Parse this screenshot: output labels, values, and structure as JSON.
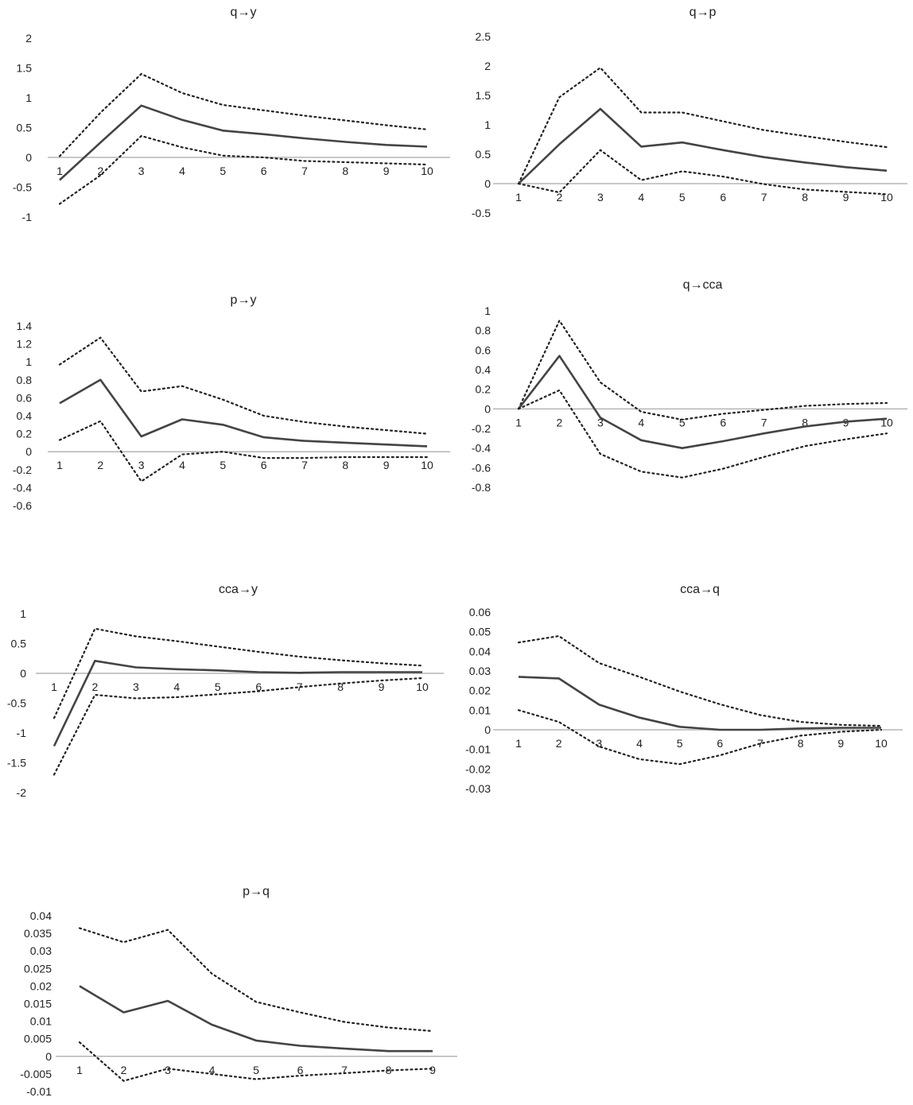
{
  "chart_data": [
    {
      "type": "line",
      "title": "q→y",
      "x": [
        1,
        2,
        3,
        4,
        5,
        6,
        7,
        8,
        9,
        10
      ],
      "y_ticks": [
        "2",
        "1.5",
        "1",
        "0.5",
        "0",
        "-0.5",
        "-1"
      ],
      "ylim": [
        -1,
        2
      ],
      "series": [
        {
          "name": "upper",
          "values": [
            0.02,
            0.75,
            1.4,
            1.08,
            0.88,
            0.79,
            0.7,
            0.62,
            0.54,
            0.47
          ]
        },
        {
          "name": "response",
          "values": [
            -0.38,
            0.25,
            0.87,
            0.63,
            0.45,
            0.39,
            0.32,
            0.26,
            0.21,
            0.18
          ]
        },
        {
          "name": "lower",
          "values": [
            -0.78,
            -0.3,
            0.36,
            0.17,
            0.03,
            0.0,
            -0.06,
            -0.08,
            -0.1,
            -0.12
          ]
        }
      ]
    },
    {
      "type": "line",
      "title": "q→p",
      "x": [
        1,
        2,
        3,
        4,
        5,
        6,
        7,
        8,
        9,
        10
      ],
      "y_ticks": [
        "2.5",
        "2",
        "1.5",
        "1",
        "0.5",
        "0",
        "-0.5"
      ],
      "ylim": [
        -0.5,
        2.5
      ],
      "series": [
        {
          "name": "upper",
          "values": [
            0.0,
            1.47,
            1.97,
            1.21,
            1.21,
            1.06,
            0.91,
            0.81,
            0.71,
            0.62
          ]
        },
        {
          "name": "response",
          "values": [
            0.0,
            0.67,
            1.27,
            0.63,
            0.7,
            0.57,
            0.45,
            0.36,
            0.28,
            0.22
          ]
        },
        {
          "name": "lower",
          "values": [
            0.0,
            -0.15,
            0.57,
            0.06,
            0.21,
            0.12,
            -0.01,
            -0.1,
            -0.14,
            -0.18
          ]
        }
      ]
    },
    {
      "type": "line",
      "title": "p→y",
      "x": [
        1,
        2,
        3,
        4,
        5,
        6,
        7,
        8,
        9,
        10
      ],
      "y_ticks": [
        "1.4",
        "1.2",
        "1",
        "0.8",
        "0.6",
        "0.4",
        "0.2",
        "0",
        "-0.2",
        "-0.4",
        "-0.6"
      ],
      "ylim": [
        -0.6,
        1.4
      ],
      "series": [
        {
          "name": "upper",
          "values": [
            0.97,
            1.27,
            0.67,
            0.73,
            0.58,
            0.4,
            0.33,
            0.28,
            0.24,
            0.2
          ]
        },
        {
          "name": "response",
          "values": [
            0.54,
            0.8,
            0.17,
            0.36,
            0.3,
            0.16,
            0.12,
            0.1,
            0.08,
            0.06
          ]
        },
        {
          "name": "lower",
          "values": [
            0.13,
            0.34,
            -0.33,
            -0.03,
            0.0,
            -0.07,
            -0.07,
            -0.06,
            -0.06,
            -0.06
          ]
        }
      ]
    },
    {
      "type": "line",
      "title": "q→cca",
      "x": [
        1,
        2,
        3,
        4,
        5,
        6,
        7,
        8,
        9,
        10
      ],
      "y_ticks": [
        "1",
        "0.8",
        "0.6",
        "0.4",
        "0.2",
        "0",
        "-0.2",
        "-0.4",
        "-0.6",
        "-0.8"
      ],
      "ylim": [
        -0.8,
        1.0
      ],
      "series": [
        {
          "name": "upper",
          "values": [
            0.0,
            0.9,
            0.27,
            -0.03,
            -0.11,
            -0.05,
            -0.01,
            0.03,
            0.05,
            0.06
          ]
        },
        {
          "name": "response",
          "values": [
            0.0,
            0.54,
            -0.09,
            -0.32,
            -0.4,
            -0.33,
            -0.25,
            -0.18,
            -0.13,
            -0.1
          ]
        },
        {
          "name": "lower",
          "values": [
            0.0,
            0.19,
            -0.46,
            -0.64,
            -0.7,
            -0.61,
            -0.49,
            -0.38,
            -0.31,
            -0.25
          ]
        }
      ]
    },
    {
      "type": "line",
      "title": "cca→y",
      "x": [
        1,
        2,
        3,
        4,
        5,
        6,
        7,
        8,
        9,
        10
      ],
      "y_ticks": [
        "1",
        "0.5",
        "0",
        "-0.5",
        "-1",
        "-1.5",
        "-2"
      ],
      "ylim": [
        -2,
        1
      ],
      "series": [
        {
          "name": "upper",
          "values": [
            -0.75,
            0.75,
            0.62,
            0.54,
            0.45,
            0.36,
            0.28,
            0.22,
            0.17,
            0.13
          ]
        },
        {
          "name": "response",
          "values": [
            -1.22,
            0.21,
            0.1,
            0.07,
            0.05,
            0.02,
            0.01,
            0.02,
            0.02,
            0.02
          ]
        },
        {
          "name": "lower",
          "values": [
            -1.7,
            -0.36,
            -0.42,
            -0.4,
            -0.35,
            -0.3,
            -0.23,
            -0.17,
            -0.12,
            -0.08
          ]
        }
      ]
    },
    {
      "type": "line",
      "title": "cca→q",
      "x": [
        1,
        2,
        3,
        4,
        5,
        6,
        7,
        8,
        9,
        10
      ],
      "y_ticks": [
        "0.06",
        "0.05",
        "0.04",
        "0.03",
        "0.02",
        "0.01",
        "0",
        "-0.01",
        "-0.02",
        "-0.03"
      ],
      "ylim": [
        -0.03,
        0.06
      ],
      "series": [
        {
          "name": "upper",
          "values": [
            0.0445,
            0.0478,
            0.034,
            0.027,
            0.0195,
            0.013,
            0.0075,
            0.004,
            0.0025,
            0.002
          ]
        },
        {
          "name": "response",
          "values": [
            0.027,
            0.0262,
            0.0128,
            0.0062,
            0.0015,
            0.0,
            0.0,
            0.0007,
            0.001,
            0.001
          ]
        },
        {
          "name": "lower",
          "values": [
            0.01,
            0.004,
            -0.0085,
            -0.015,
            -0.0175,
            -0.013,
            -0.007,
            -0.003,
            -0.001,
            0.0
          ]
        }
      ]
    },
    {
      "type": "line",
      "title": "p→q",
      "x": [
        1,
        2,
        3,
        4,
        5,
        6,
        7,
        8,
        9
      ],
      "y_ticks": [
        "0.04",
        "0.035",
        "0.03",
        "0.025",
        "0.02",
        "0.015",
        "0.01",
        "0.005",
        "0",
        "-0.005",
        "-0.01"
      ],
      "ylim": [
        -0.01,
        0.04
      ],
      "series": [
        {
          "name": "upper",
          "values": [
            0.0365,
            0.0325,
            0.036,
            0.0235,
            0.0155,
            0.0125,
            0.0098,
            0.0082,
            0.0072
          ]
        },
        {
          "name": "response",
          "values": [
            0.02,
            0.0125,
            0.0158,
            0.009,
            0.0045,
            0.003,
            0.0022,
            0.0015,
            0.0015
          ]
        },
        {
          "name": "lower",
          "values": [
            0.004,
            -0.007,
            -0.0035,
            -0.005,
            -0.0065,
            -0.0055,
            -0.0048,
            -0.004,
            -0.0035
          ]
        }
      ]
    }
  ]
}
